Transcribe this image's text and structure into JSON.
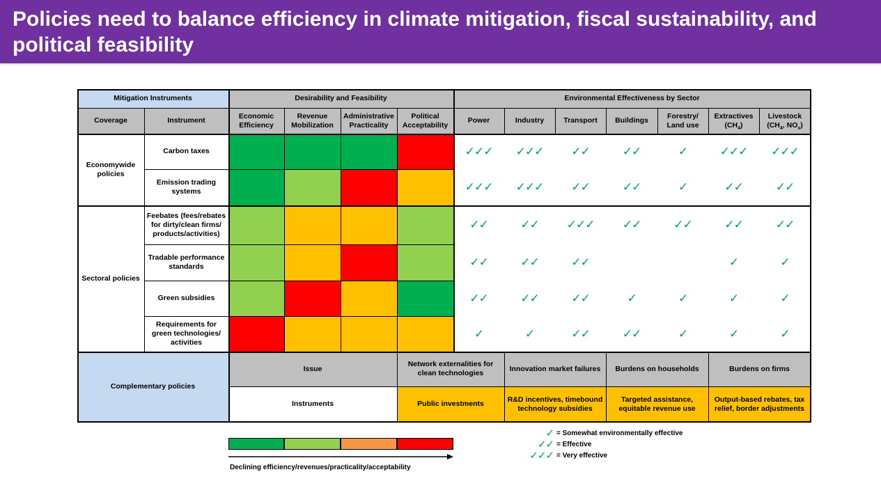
{
  "title": "Policies need to balance efficiency in climate mitigation, fiscal sustainability, and political feasibility",
  "colors": {
    "dark_green": "#00b050",
    "light_green": "#92d050",
    "amber": "#ffc000",
    "red": "#ff0000",
    "orange": "#f79646",
    "header_blue": "#c5d9f1",
    "header_gray": "#bfbfbf",
    "check_green": "#00a84f"
  },
  "headers": {
    "mitigation_instruments": "Mitigation Instruments",
    "desirability_feasibility": "Desirability and Feasibility",
    "env_effectiveness": "Environmental Effectiveness by Sector",
    "coverage": "Coverage",
    "instrument": "Instrument",
    "economic_efficiency": "Economic Efficiency",
    "revenue_mobilization": "Revenue Mobilization",
    "administrative_practicality": "Administrative Practicality",
    "political_acceptability": "Political Acceptability",
    "power": "Power",
    "industry": "Industry",
    "transport": "Transport",
    "buildings": "Buildings",
    "forestry": "Forestry/ Land use",
    "extractives": "Extractives",
    "extractives_sub": "(CH",
    "extractives_sub2": "4",
    "extractives_end": ")",
    "livestock": "Livestock",
    "livestock_sub": "(CH",
    "livestock_sub2": "4",
    "livestock_mid": ", NO",
    "livestock_sub3": "x",
    "livestock_end": ")"
  },
  "coverage": {
    "economywide": "Economywide policies",
    "sectoral": "Sectoral policies"
  },
  "rows": [
    {
      "instrument": "Carbon taxes",
      "ratings": [
        "dark_green",
        "dark_green",
        "dark_green",
        "red"
      ],
      "checks": [
        "✓✓✓",
        "✓✓✓",
        "✓✓",
        "✓✓",
        "✓",
        "✓✓✓",
        "✓✓✓"
      ]
    },
    {
      "instrument": "Emission trading systems",
      "ratings": [
        "dark_green",
        "light_green",
        "red",
        "amber"
      ],
      "checks": [
        "✓✓✓",
        "✓✓✓",
        "✓✓",
        "✓✓",
        "✓",
        "✓✓",
        "✓✓"
      ]
    },
    {
      "instrument": "Feebates (fees/rebates for dirty/clean firms/ products/activities)",
      "ratings": [
        "light_green",
        "amber",
        "amber",
        "light_green"
      ],
      "checks": [
        "✓✓",
        "✓✓",
        "✓✓✓",
        "✓✓",
        "✓✓",
        "✓✓",
        "✓✓"
      ]
    },
    {
      "instrument": "Tradable performance standards",
      "ratings": [
        "light_green",
        "amber",
        "red",
        "light_green"
      ],
      "checks": [
        "✓✓",
        "✓✓",
        "✓✓",
        "",
        "",
        "✓",
        "✓"
      ]
    },
    {
      "instrument": "Green subsidies",
      "ratings": [
        "light_green",
        "red",
        "amber",
        "dark_green"
      ],
      "checks": [
        "✓✓",
        "✓✓",
        "✓✓",
        "✓",
        "✓",
        "✓",
        "✓"
      ]
    },
    {
      "instrument": "Requirements for green technologies/ activities",
      "ratings": [
        "red",
        "amber",
        "amber",
        "amber"
      ],
      "checks": [
        "✓",
        "✓",
        "✓✓",
        "✓✓",
        "✓",
        "✓",
        "✓"
      ]
    }
  ],
  "complementary": {
    "label": "Complementary policies",
    "issue_label": "Issue",
    "instruments_label": "Instruments",
    "issues": [
      "Network externalities for clean technologies",
      "Innovation market failures",
      "Burdens on households",
      "Burdens on firms"
    ],
    "instruments": [
      "Public investments",
      "R&D incentives, timebound technology subsidies",
      "Targeted assistance, equitable revenue use",
      "Output-based rebates, tax relief, border adjustments"
    ]
  },
  "legend": {
    "arrow_caption": "Declining efficiency/revenues/practicality/acceptability",
    "scale": [
      "dark_green",
      "light_green",
      "orange",
      "red"
    ],
    "items": [
      {
        "checks": "✓",
        "text": "= Somewhat environmentally effective"
      },
      {
        "checks": "✓✓",
        "text": "= Effective"
      },
      {
        "checks": "✓✓✓",
        "text": "= Very effective"
      }
    ]
  }
}
